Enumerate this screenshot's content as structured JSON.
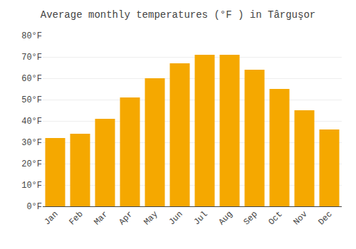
{
  "chart_data": {
    "type": "bar",
    "title": "Average monthly temperatures (°F ) in Târguşor",
    "categories": [
      "Jan",
      "Feb",
      "Mar",
      "Apr",
      "May",
      "Jun",
      "Jul",
      "Aug",
      "Sep",
      "Oct",
      "Nov",
      "Dec"
    ],
    "values": [
      32,
      34,
      41,
      51,
      60,
      67,
      71,
      71,
      64,
      55,
      45,
      36
    ],
    "color": "#F5A800",
    "ylim": [
      0,
      80
    ],
    "yticks": [
      {
        "value": 0,
        "label": "0°F"
      },
      {
        "value": 10,
        "label": "10°F"
      },
      {
        "value": 20,
        "label": "20°F"
      },
      {
        "value": 30,
        "label": "30°F"
      },
      {
        "value": 40,
        "label": "40°F"
      },
      {
        "value": 50,
        "label": "50°F"
      },
      {
        "value": 60,
        "label": "60°F"
      },
      {
        "value": 70,
        "label": "70°F"
      },
      {
        "value": 80,
        "label": "80°F"
      }
    ],
    "grid": true
  }
}
